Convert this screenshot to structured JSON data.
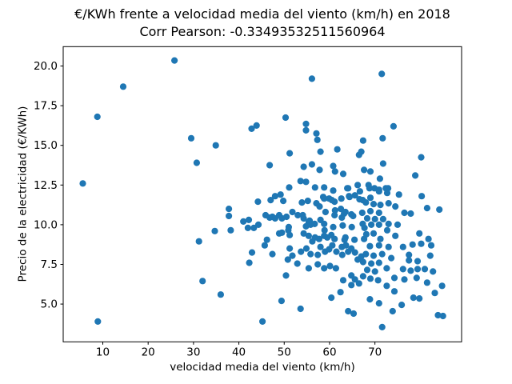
{
  "figure": {
    "title": "€/KWh frente a velocidad media del viento (km/h) en 2018",
    "subtitle": "Corr Pearson: -0.33493532511560964"
  },
  "chart_data": {
    "type": "scatter",
    "title": "€/KWh frente a velocidad media del viento (km/h) en 2018",
    "subtitle": "Corr Pearson: -0.33493532511560964",
    "pearson_corr": -0.33493532511560964,
    "xlabel": "velocidad media del viento (km/h)",
    "ylabel": "Precio de la electricidad (€/KWh)",
    "xlim": [
      1.27,
      89.11
    ],
    "ylim": [
      2.62,
      21.22
    ],
    "xticks": [
      10,
      20,
      30,
      40,
      50,
      60,
      70
    ],
    "xtick_labels": [
      "10",
      "20",
      "30",
      "40",
      "50",
      "60",
      "70"
    ],
    "yticks": [
      5.0,
      7.5,
      10.0,
      12.5,
      15.0,
      17.5,
      20.0
    ],
    "ytick_labels": [
      "5.0",
      "7.5",
      "10.0",
      "12.5",
      "15.0",
      "17.5",
      "20.0"
    ],
    "grid": false,
    "legend": null,
    "marker_color": "#1f77b4",
    "marker_radius_px": 4.1,
    "axis_color": "#000000",
    "points": [
      [
        14.5,
        18.7
      ],
      [
        8.8,
        16.8
      ],
      [
        5.6,
        12.6
      ],
      [
        8.9,
        3.9
      ],
      [
        25.8,
        20.35
      ],
      [
        29.5,
        15.45
      ],
      [
        34.9,
        15.0
      ],
      [
        42.8,
        16.05
      ],
      [
        43.9,
        16.25
      ],
      [
        30.7,
        13.9
      ],
      [
        37.8,
        11.0
      ],
      [
        37.8,
        10.55
      ],
      [
        44.2,
        11.45
      ],
      [
        34.7,
        9.6
      ],
      [
        38.2,
        9.65
      ],
      [
        31.2,
        8.95
      ],
      [
        42.9,
        8.25
      ],
      [
        42.3,
        7.6
      ],
      [
        32.0,
        6.45
      ],
      [
        36.0,
        5.6
      ],
      [
        45.2,
        3.9
      ],
      [
        41.0,
        10.2
      ],
      [
        42.2,
        10.3
      ],
      [
        42.0,
        9.8
      ],
      [
        43.3,
        9.8
      ],
      [
        44.3,
        10.0
      ],
      [
        56.1,
        19.2
      ],
      [
        50.3,
        16.75
      ],
      [
        54.8,
        16.35
      ],
      [
        54.8,
        15.95
      ],
      [
        57.1,
        15.75
      ],
      [
        57.3,
        15.35
      ],
      [
        71.5,
        19.5
      ],
      [
        74.1,
        16.2
      ],
      [
        71.7,
        15.45
      ],
      [
        67.4,
        15.3
      ],
      [
        67.0,
        14.6
      ],
      [
        80.2,
        14.25
      ],
      [
        71.8,
        13.85
      ],
      [
        78.9,
        13.1
      ],
      [
        69.0,
        13.35
      ],
      [
        67.6,
        13.45
      ],
      [
        51.2,
        14.5
      ],
      [
        58.0,
        14.6
      ],
      [
        61.7,
        14.75
      ],
      [
        66.5,
        14.4
      ],
      [
        46.8,
        13.75
      ],
      [
        54.3,
        13.65
      ],
      [
        56.1,
        13.8
      ],
      [
        57.8,
        13.45
      ],
      [
        60.8,
        13.7
      ],
      [
        61.2,
        13.35
      ],
      [
        63.0,
        13.2
      ],
      [
        53.6,
        12.75
      ],
      [
        54.8,
        12.7
      ],
      [
        56.8,
        12.35
      ],
      [
        51.1,
        12.35
      ],
      [
        63.9,
        12.3
      ],
      [
        66.2,
        12.5
      ],
      [
        58.8,
        12.35
      ],
      [
        60.8,
        12.15
      ],
      [
        64.1,
        12.3
      ],
      [
        66.7,
        12.1
      ],
      [
        68.8,
        12.3
      ],
      [
        70.9,
        12.2
      ],
      [
        72.9,
        12.3
      ],
      [
        71.1,
        12.9
      ],
      [
        68.6,
        12.5
      ],
      [
        69.9,
        12.3
      ],
      [
        72.4,
        12.3
      ],
      [
        72.7,
        12.0
      ],
      [
        48.0,
        11.8
      ],
      [
        49.2,
        11.9
      ],
      [
        47.0,
        11.55
      ],
      [
        49.8,
        11.5
      ],
      [
        53.9,
        11.4
      ],
      [
        55.2,
        11.5
      ],
      [
        57.1,
        11.35
      ],
      [
        58.6,
        11.75
      ],
      [
        59.9,
        11.65
      ],
      [
        61.1,
        11.45
      ],
      [
        57.8,
        11.15
      ],
      [
        64.3,
        11.8
      ],
      [
        65.6,
        11.85
      ],
      [
        66.6,
        11.6
      ],
      [
        58.8,
        11.65
      ],
      [
        60.5,
        11.55
      ],
      [
        62.6,
        11.65
      ],
      [
        64.4,
        11.75
      ],
      [
        67.3,
        11.55
      ],
      [
        75.3,
        11.9
      ],
      [
        80.3,
        11.8
      ],
      [
        69.0,
        11.7
      ],
      [
        68.0,
        11.4
      ],
      [
        69.7,
        11.3
      ],
      [
        71.2,
        11.25
      ],
      [
        73.0,
        11.35
      ],
      [
        74.5,
        11.15
      ],
      [
        81.5,
        11.05
      ],
      [
        84.2,
        10.95
      ],
      [
        70.9,
        12.1
      ],
      [
        45.9,
        10.6
      ],
      [
        47.4,
        10.5
      ],
      [
        48.9,
        10.6
      ],
      [
        50.5,
        10.5
      ],
      [
        46.8,
        10.45
      ],
      [
        48.0,
        10.4
      ],
      [
        49.5,
        10.4
      ],
      [
        51.8,
        10.8
      ],
      [
        53.0,
        10.6
      ],
      [
        54.3,
        10.4
      ],
      [
        55.6,
        10.25
      ],
      [
        56.7,
        10.05
      ],
      [
        58.0,
        10.3
      ],
      [
        54.1,
        10.6
      ],
      [
        55.4,
        10.15
      ],
      [
        61.2,
        10.9
      ],
      [
        62.5,
        11.0
      ],
      [
        63.5,
        10.8
      ],
      [
        64.8,
        10.65
      ],
      [
        62.7,
        10.45
      ],
      [
        59.1,
        10.8
      ],
      [
        61.1,
        10.6
      ],
      [
        63.2,
        10.7
      ],
      [
        65.2,
        10.55
      ],
      [
        67.2,
        10.75
      ],
      [
        69.0,
        10.85
      ],
      [
        70.9,
        10.75
      ],
      [
        76.5,
        10.75
      ],
      [
        77.9,
        10.7
      ],
      [
        68.3,
        10.4
      ],
      [
        70.0,
        10.35
      ],
      [
        71.8,
        10.35
      ],
      [
        58.8,
        10.05
      ],
      [
        60.8,
        9.85
      ],
      [
        62.9,
        9.95
      ],
      [
        64.9,
        9.85
      ],
      [
        67.3,
        10.05
      ],
      [
        49.5,
        9.5
      ],
      [
        50.9,
        9.65
      ],
      [
        54.8,
        9.9
      ],
      [
        55.8,
        10.0
      ],
      [
        51.0,
        9.85
      ],
      [
        48.9,
        9.45
      ],
      [
        51.2,
        9.35
      ],
      [
        46.2,
        9.05
      ],
      [
        55.4,
        9.3
      ],
      [
        56.2,
        8.95
      ],
      [
        57.7,
        9.1
      ],
      [
        58.9,
        9.65
      ],
      [
        59.5,
        9.2
      ],
      [
        58.8,
        9.3
      ],
      [
        61.1,
        9.1
      ],
      [
        63.5,
        9.2
      ],
      [
        65.5,
        9.05
      ],
      [
        67.6,
        9.1
      ],
      [
        69.2,
        10.0
      ],
      [
        70.9,
        10.0
      ],
      [
        73.0,
        10.05
      ],
      [
        75.0,
        10.0
      ],
      [
        67.7,
        9.8
      ],
      [
        72.7,
        9.65
      ],
      [
        69.7,
        9.45
      ],
      [
        68.1,
        9.4
      ],
      [
        74.5,
        9.3
      ],
      [
        79.8,
        9.45
      ],
      [
        71.2,
        9.1
      ],
      [
        81.8,
        9.1
      ],
      [
        54.3,
        9.45
      ],
      [
        56.8,
        9.2
      ],
      [
        60.4,
        9.35
      ],
      [
        63.3,
        9.05
      ],
      [
        45.7,
        8.7
      ],
      [
        47.4,
        8.15
      ],
      [
        51.2,
        8.5
      ],
      [
        51.8,
        8.05
      ],
      [
        53.7,
        8.3
      ],
      [
        54.9,
        8.5
      ],
      [
        55.8,
        8.15
      ],
      [
        57.4,
        8.1
      ],
      [
        58.0,
        8.6
      ],
      [
        59.0,
        8.3
      ],
      [
        59.9,
        8.45
      ],
      [
        60.6,
        8.7
      ],
      [
        61.5,
        8.3
      ],
      [
        62.7,
        8.6
      ],
      [
        62.8,
        8.1
      ],
      [
        63.6,
        8.7
      ],
      [
        64.1,
        8.3
      ],
      [
        64.8,
        8.5
      ],
      [
        65.6,
        8.25
      ],
      [
        66.2,
        7.8
      ],
      [
        67.0,
        8.0
      ],
      [
        68.9,
        8.65
      ],
      [
        70.9,
        8.7
      ],
      [
        73.0,
        8.6
      ],
      [
        68.0,
        8.15
      ],
      [
        69.7,
        8.05
      ],
      [
        71.6,
        8.15
      ],
      [
        73.6,
        7.9
      ],
      [
        76.2,
        8.6
      ],
      [
        78.3,
        8.75
      ],
      [
        80.2,
        8.8
      ],
      [
        82.4,
        8.7
      ],
      [
        82.2,
        8.05
      ],
      [
        77.5,
        8.1
      ],
      [
        50.8,
        7.8
      ],
      [
        52.9,
        7.55
      ],
      [
        55.4,
        7.25
      ],
      [
        57.4,
        7.5
      ],
      [
        58.8,
        7.25
      ],
      [
        60.1,
        7.4
      ],
      [
        61.4,
        7.25
      ],
      [
        67.4,
        7.65
      ],
      [
        69.2,
        7.55
      ],
      [
        70.9,
        7.6
      ],
      [
        72.6,
        7.25
      ],
      [
        68.3,
        7.15
      ],
      [
        70.0,
        7.05
      ],
      [
        77.5,
        7.75
      ],
      [
        79.4,
        7.7
      ],
      [
        76.2,
        7.2
      ],
      [
        77.9,
        7.1
      ],
      [
        79.4,
        7.2
      ],
      [
        81.0,
        7.2
      ],
      [
        82.8,
        7.05
      ],
      [
        50.4,
        6.8
      ],
      [
        63.0,
        6.5
      ],
      [
        64.8,
        6.8
      ],
      [
        65.6,
        6.55
      ],
      [
        66.5,
        6.3
      ],
      [
        64.8,
        6.2
      ],
      [
        67.4,
        6.75
      ],
      [
        69.0,
        6.6
      ],
      [
        70.7,
        6.5
      ],
      [
        74.3,
        6.65
      ],
      [
        76.5,
        6.55
      ],
      [
        79.2,
        6.65
      ],
      [
        81.5,
        6.35
      ],
      [
        84.8,
        6.15
      ],
      [
        72.6,
        6.15
      ],
      [
        83.2,
        5.7
      ],
      [
        49.4,
        5.2
      ],
      [
        53.6,
        4.7
      ],
      [
        60.4,
        5.4
      ],
      [
        62.4,
        5.75
      ],
      [
        64.1,
        4.55
      ],
      [
        65.3,
        4.4
      ],
      [
        74.3,
        5.8
      ],
      [
        68.9,
        5.3
      ],
      [
        70.9,
        5.05
      ],
      [
        75.9,
        4.95
      ],
      [
        78.5,
        5.4
      ],
      [
        79.8,
        5.35
      ],
      [
        73.9,
        4.55
      ],
      [
        83.9,
        4.3
      ],
      [
        85.0,
        4.25
      ],
      [
        71.6,
        3.55
      ]
    ]
  }
}
